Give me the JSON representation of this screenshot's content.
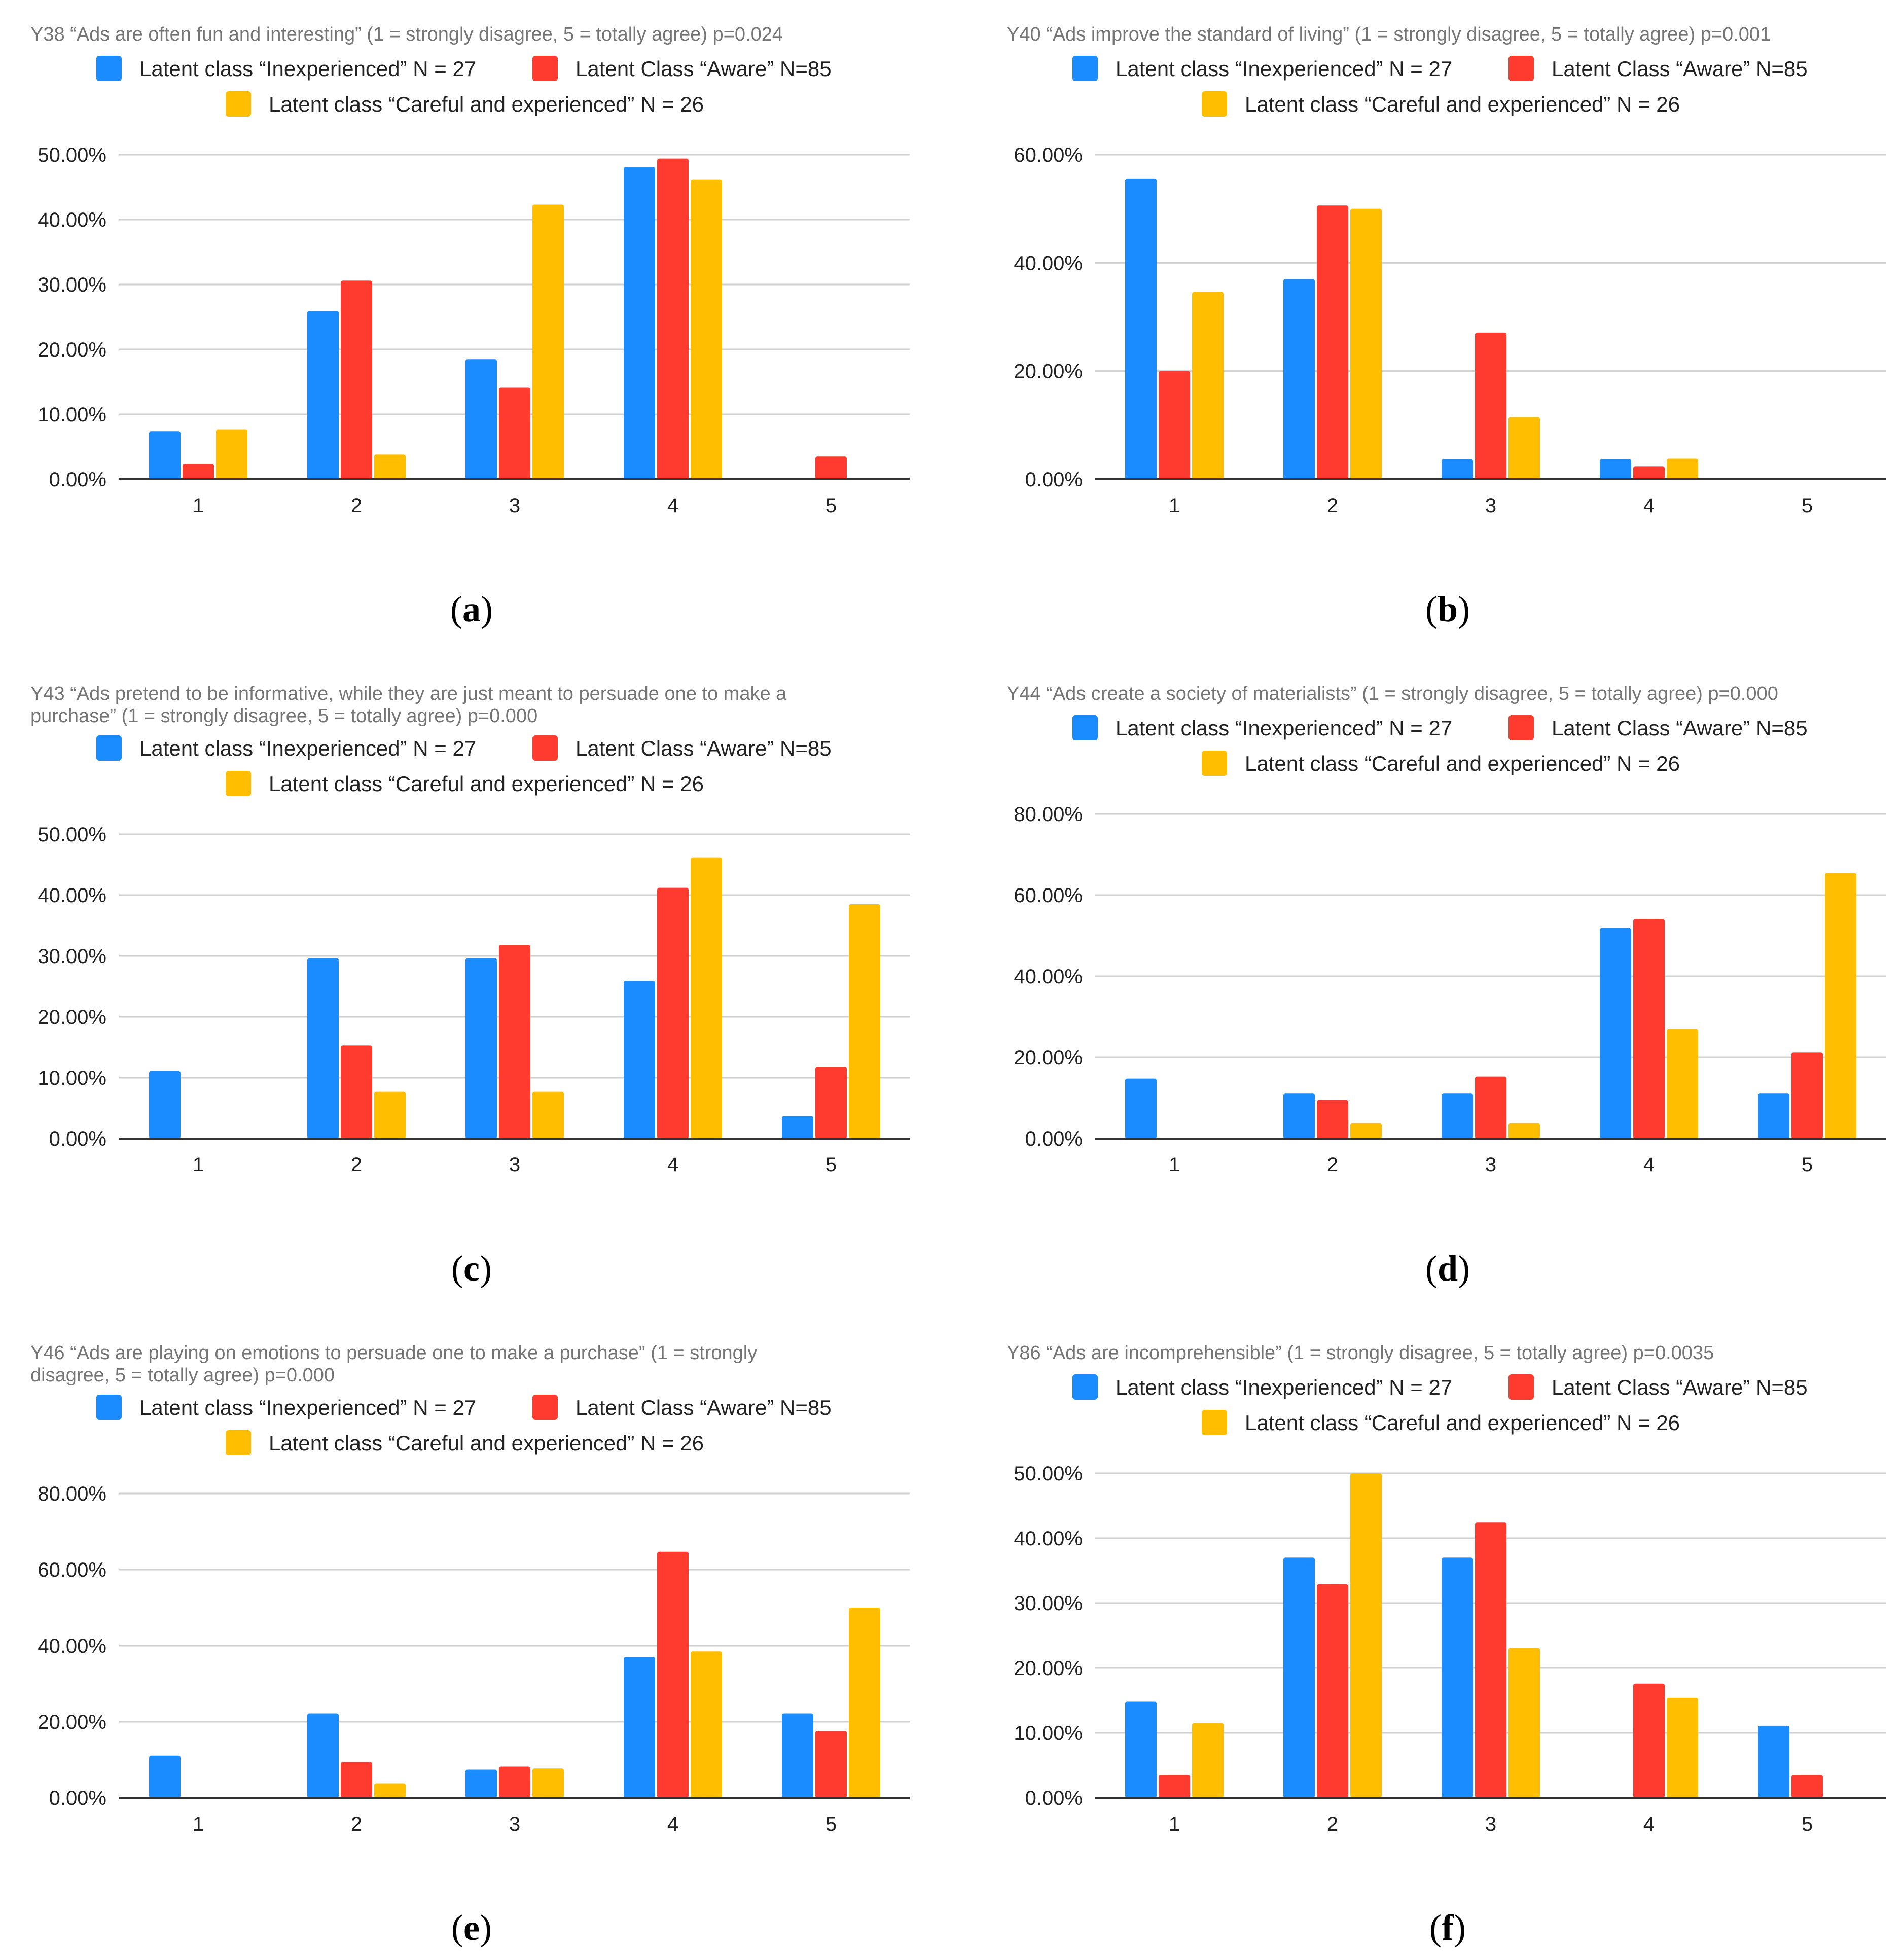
{
  "colors": {
    "inexperienced": "#1a8cff",
    "aware": "#ff3b30",
    "careful": "#ffbf00"
  },
  "chart_data": [
    {
      "id": "a",
      "type": "bar",
      "title_lines": [
        "Y38 “Ads are often fun and interesting” (1 = strongly disagree, 5 = totally agree) p=0.024"
      ],
      "categories": [
        "1",
        "2",
        "3",
        "4",
        "5"
      ],
      "ylim": [
        0,
        50
      ],
      "yticks": [
        "0.00%",
        "10.00%",
        "20.00%",
        "30.00%",
        "40.00%",
        "50.00%"
      ],
      "panel_label": "a",
      "series": [
        {
          "name": "Latent class “Inexperienced” N = 27",
          "values": [
            7.4,
            25.9,
            18.5,
            48.1,
            0
          ]
        },
        {
          "name": "Latent Class “Aware” N=85",
          "values": [
            2.4,
            30.6,
            14.1,
            49.4,
            3.5
          ]
        },
        {
          "name": "Latent class “Careful and experienced” N = 26",
          "values": [
            7.7,
            3.8,
            42.3,
            46.2,
            0
          ]
        }
      ]
    },
    {
      "id": "b",
      "type": "bar",
      "title_lines": [
        "Y40 “Ads improve the standard of living” (1 = strongly disagree, 5 = totally agree) p=0.001"
      ],
      "categories": [
        "1",
        "2",
        "3",
        "4",
        "5"
      ],
      "ylim": [
        0,
        60
      ],
      "yticks": [
        "0.00%",
        "20.00%",
        "40.00%",
        "60.00%"
      ],
      "panel_label": "b",
      "series": [
        {
          "name": "Latent class “Inexperienced” N = 27",
          "values": [
            55.6,
            37.0,
            3.7,
            3.7,
            0
          ]
        },
        {
          "name": "Latent Class “Aware” N=85",
          "values": [
            20.0,
            50.6,
            27.1,
            2.4,
            0
          ]
        },
        {
          "name": "Latent class “Careful and experienced” N = 26",
          "values": [
            34.6,
            50.0,
            11.5,
            3.8,
            0
          ]
        }
      ]
    },
    {
      "id": "c",
      "type": "bar",
      "title_lines": [
        "Y43 “Ads pretend to be informative, while they are just meant to persuade one to make a",
        "purchase” (1 = strongly disagree, 5 = totally agree) p=0.000"
      ],
      "categories": [
        "1",
        "2",
        "3",
        "4",
        "5"
      ],
      "ylim": [
        0,
        50
      ],
      "yticks": [
        "0.00%",
        "10.00%",
        "20.00%",
        "30.00%",
        "40.00%",
        "50.00%"
      ],
      "panel_label": "c",
      "series": [
        {
          "name": "Latent class “Inexperienced” N = 27",
          "values": [
            11.1,
            29.6,
            29.6,
            25.9,
            3.7
          ]
        },
        {
          "name": "Latent Class “Aware” N=85",
          "values": [
            0,
            15.3,
            31.8,
            41.2,
            11.8
          ]
        },
        {
          "name": "Latent class “Careful and experienced” N = 26",
          "values": [
            0,
            7.7,
            7.7,
            46.2,
            38.5
          ]
        }
      ]
    },
    {
      "id": "d",
      "type": "bar",
      "title_lines": [
        "Y44 “Ads create a society of materialists” (1 = strongly disagree, 5 = totally agree) p=0.000"
      ],
      "categories": [
        "1",
        "2",
        "3",
        "4",
        "5"
      ],
      "ylim": [
        0,
        80
      ],
      "yticks": [
        "0.00%",
        "20.00%",
        "40.00%",
        "60.00%",
        "80.00%"
      ],
      "panel_label": "d",
      "series": [
        {
          "name": "Latent class “Inexperienced” N = 27",
          "values": [
            14.8,
            11.1,
            11.1,
            51.9,
            11.1
          ]
        },
        {
          "name": "Latent Class “Aware” N=85",
          "values": [
            0,
            9.4,
            15.3,
            54.1,
            21.2
          ]
        },
        {
          "name": "Latent class “Careful and experienced” N = 26",
          "values": [
            0,
            3.8,
            3.8,
            26.9,
            65.4
          ]
        }
      ]
    },
    {
      "id": "e",
      "type": "bar",
      "title_lines": [
        "Y46 “Ads are playing on emotions to persuade one to make a purchase” (1 = strongly",
        "disagree, 5 = totally agree) p=0.000"
      ],
      "categories": [
        "1",
        "2",
        "3",
        "4",
        "5"
      ],
      "ylim": [
        0,
        80
      ],
      "yticks": [
        "0.00%",
        "20.00%",
        "40.00%",
        "60.00%",
        "80.00%"
      ],
      "panel_label": "e",
      "series": [
        {
          "name": "Latent class “Inexperienced” N = 27",
          "values": [
            11.1,
            22.2,
            7.4,
            37.0,
            22.2
          ]
        },
        {
          "name": "Latent Class “Aware” N=85",
          "values": [
            0,
            9.4,
            8.2,
            64.7,
            17.6
          ]
        },
        {
          "name": "Latent class “Careful and experienced” N = 26",
          "values": [
            0,
            3.8,
            7.7,
            38.5,
            50.0
          ]
        }
      ]
    },
    {
      "id": "f",
      "type": "bar",
      "title_lines": [
        "Y86 “Ads are incomprehensible” (1 = strongly disagree, 5 = totally agree) p=0.0035"
      ],
      "categories": [
        "1",
        "2",
        "3",
        "4",
        "5"
      ],
      "ylim": [
        0,
        50
      ],
      "yticks": [
        "0.00%",
        "10.00%",
        "20.00%",
        "30.00%",
        "40.00%",
        "50.00%"
      ],
      "panel_label": "f",
      "series": [
        {
          "name": "Latent class “Inexperienced” N = 27",
          "values": [
            14.8,
            37.0,
            37.0,
            0,
            11.1
          ]
        },
        {
          "name": "Latent Class “Aware” N=85",
          "values": [
            3.5,
            32.9,
            42.4,
            17.6,
            3.5
          ]
        },
        {
          "name": "Latent class “Careful and experienced” N = 26",
          "values": [
            11.5,
            50.0,
            23.1,
            15.4,
            0
          ]
        }
      ]
    }
  ]
}
